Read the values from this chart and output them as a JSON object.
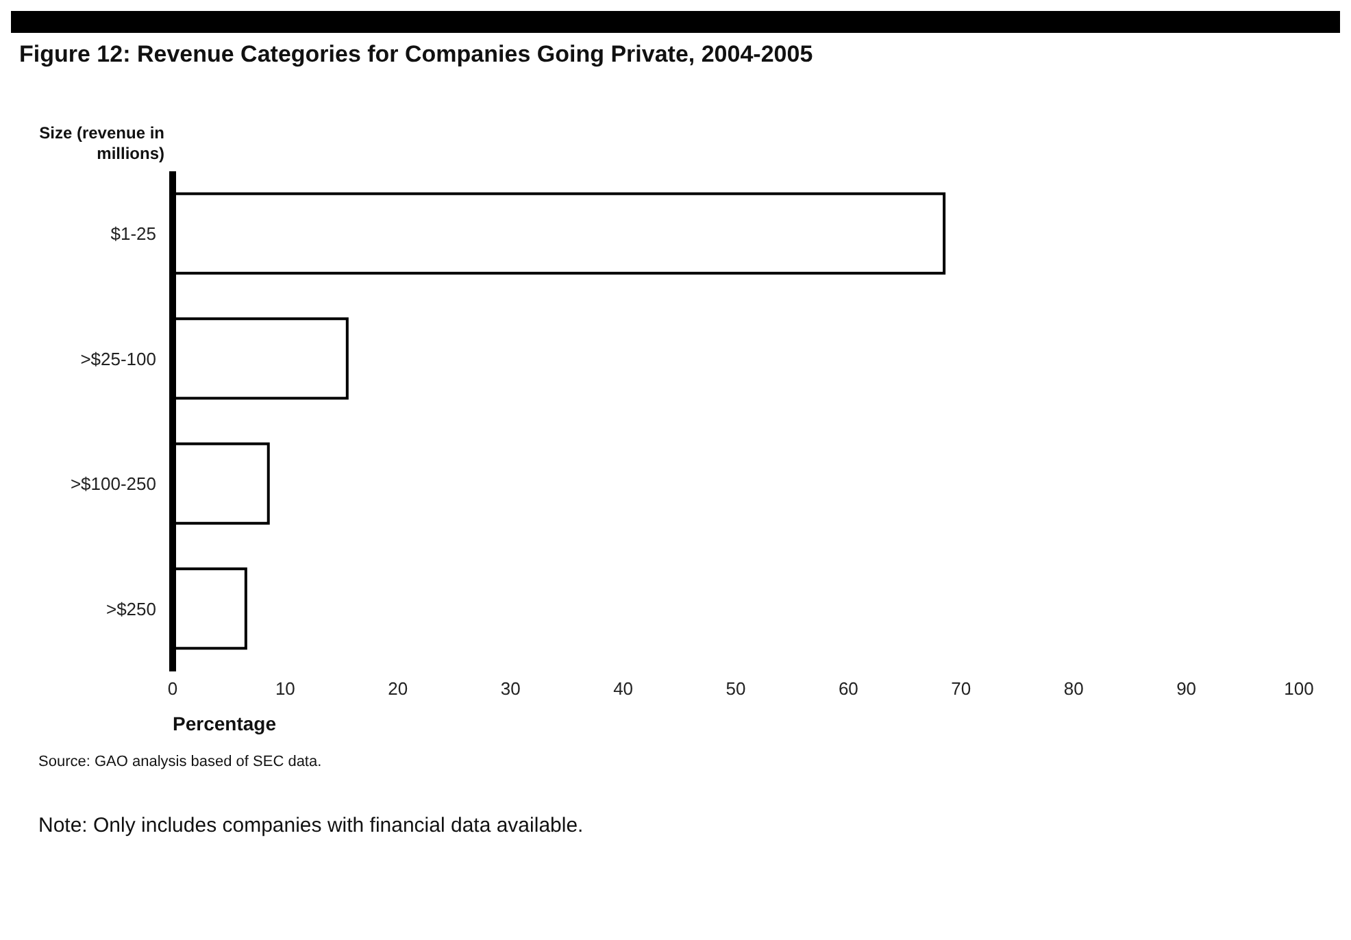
{
  "chart_data": {
    "type": "bar",
    "orientation": "horizontal",
    "title": "Figure 12: Revenue Categories for Companies Going Private, 2004-2005",
    "ylabel": "Size (revenue in millions)",
    "xlabel": "Percentage",
    "categories": [
      "$1-25",
      ">$25-100",
      ">$100-250",
      ">$250"
    ],
    "values": [
      68.5,
      15.5,
      8.5,
      6.5
    ],
    "color": "#ffffff",
    "xlim": [
      0,
      100
    ],
    "xticks": [
      0,
      10,
      20,
      30,
      40,
      50,
      60,
      70,
      80,
      90,
      100
    ],
    "annotations": [
      "Source: GAO analysis based of SEC data.",
      "Note: Only includes companies with financial data available."
    ]
  }
}
